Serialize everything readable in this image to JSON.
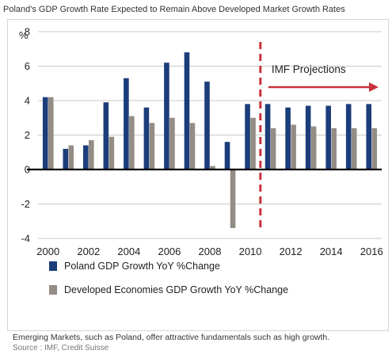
{
  "title": "Poland's GDP Growth Rate Expected to Remain Above Developed Market Growth Rates",
  "caption": "Emerging Markets, such as Poland, offer attractive fundamentals such as high growth.",
  "source": "Source : IMF, Credit Suisse",
  "colors": {
    "poland": "#1b3d7a",
    "developed": "#948d85",
    "projection": "#c8323a",
    "axis": "#000000",
    "grid": "#c8c8c8"
  },
  "chart_data": {
    "type": "bar",
    "title": "Poland's GDP Growth Rate Expected to Remain Above Developed Market Growth Rates",
    "ylabel": "%",
    "xlabel": "",
    "ylim": [
      -4,
      8
    ],
    "yticks": [
      -4,
      -2,
      0,
      2,
      4,
      6,
      8
    ],
    "grid": true,
    "legend_position": "bottom",
    "categories": [
      "2000",
      "2001",
      "2002",
      "2003",
      "2004",
      "2005",
      "2006",
      "2007",
      "2008",
      "2009",
      "2010",
      "2011",
      "2012",
      "2013",
      "2014",
      "2015",
      "2016"
    ],
    "x_tick_labels": [
      "2000",
      "2002",
      "2004",
      "2006",
      "2008",
      "2010",
      "2012",
      "2014",
      "2016"
    ],
    "series": [
      {
        "name": "Poland GDP Growth YoY %Change",
        "values": [
          4.2,
          1.2,
          1.4,
          3.9,
          5.3,
          3.6,
          6.2,
          6.8,
          5.1,
          1.6,
          3.8,
          3.8,
          3.6,
          3.7,
          3.7,
          3.8,
          3.8
        ]
      },
      {
        "name": "Developed Economies GDP Growth YoY %Change",
        "values": [
          4.2,
          1.4,
          1.7,
          1.9,
          3.1,
          2.7,
          3.0,
          2.7,
          0.2,
          -3.4,
          3.0,
          2.4,
          2.6,
          2.5,
          2.4,
          2.4,
          2.4
        ]
      }
    ],
    "annotation": {
      "text": "IMF Projections",
      "from_category": "2011"
    }
  }
}
